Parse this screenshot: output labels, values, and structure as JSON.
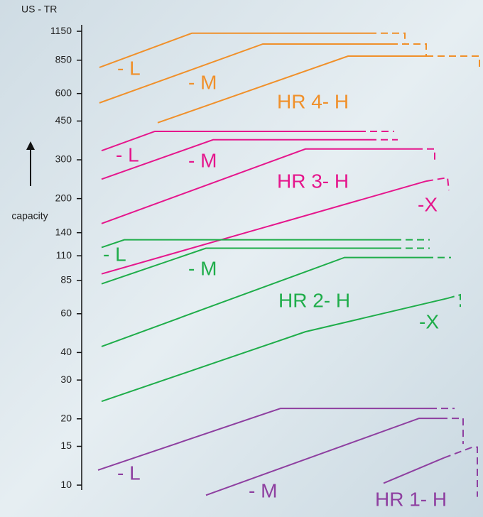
{
  "chart_data": {
    "type": "line",
    "y_label": "US - TR",
    "arrow_label": "capacity",
    "yscale": "log",
    "ylim": [
      9.5,
      1230
    ],
    "yticks": [
      10,
      15,
      20,
      30,
      40,
      60,
      85,
      110,
      140,
      200,
      300,
      450,
      600,
      850,
      1150
    ],
    "series": [
      {
        "name": "- L",
        "color": "#f0902a",
        "values": [
          788,
          1127,
          1127
        ]
      },
      {
        "name": "- M",
        "color": "#f0902a",
        "values": [
          544,
          1007,
          1007
        ]
      },
      {
        "name": "HR 4- H",
        "color": "#f0902a",
        "values": [
          442,
          887,
          887
        ]
      },
      {
        "name": "- L",
        "color": "#e5168c",
        "values": [
          330,
          404,
          404
        ]
      },
      {
        "name": "- M",
        "color": "#e5168c",
        "values": [
          245,
          370,
          370
        ]
      },
      {
        "name": "HR 3- H",
        "color": "#e5168c",
        "values": [
          154,
          336,
          336
        ]
      },
      {
        "name": "-X",
        "color": "#e5168c",
        "values": [
          91,
          240
        ]
      },
      {
        "name": "- L",
        "color": "#1fad4a",
        "values": [
          120,
          130,
          130
        ]
      },
      {
        "name": "- M",
        "color": "#1fad4a",
        "values": [
          82,
          119,
          119
        ]
      },
      {
        "name": "HR 2- H",
        "color": "#1fad4a",
        "values": [
          42.6,
          108,
          108
        ]
      },
      {
        "name": "-X",
        "color": "#1fad4a",
        "values": [
          24,
          49.7,
          70.5
        ]
      },
      {
        "name": "- L",
        "color": "#8e3fa0",
        "values": [
          11.7,
          22.3,
          22.3
        ]
      },
      {
        "name": "- M",
        "color": "#8e3fa0",
        "values": [
          9,
          20.1,
          20.1
        ]
      },
      {
        "name": "HR 1- H",
        "color": "#8e3fa0",
        "values": [
          10.2,
          13.3
        ]
      }
    ]
  }
}
